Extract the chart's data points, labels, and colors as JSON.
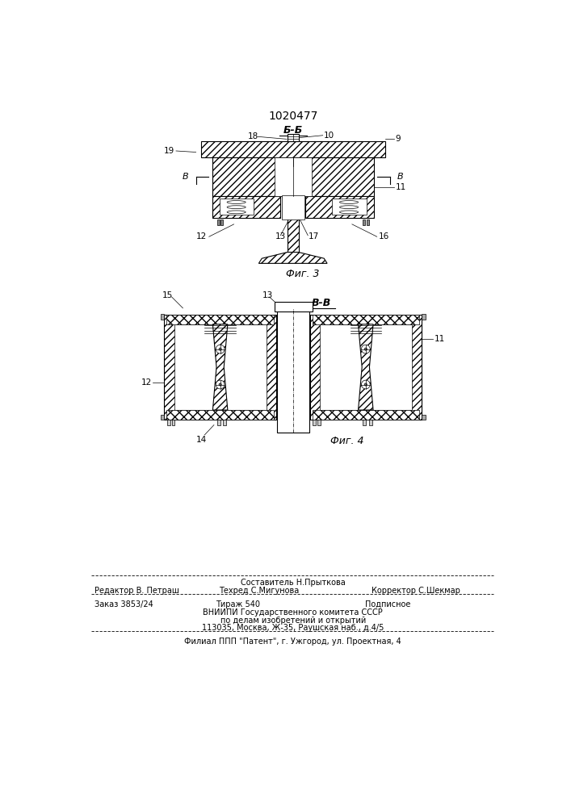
{
  "patent_number": "1020477",
  "fig3_label": "Б-Б",
  "fig4_label": "В-В",
  "fig3_caption": "Фиг. 3",
  "fig4_caption": "Фиг. 4",
  "footer_line1": "Составитель Н.Прыткова",
  "footer_line2_left": "Редактор В. Петраш",
  "footer_line2_mid": "Техред С.Мигунова",
  "footer_line2_right": "Корректор С.Шекмар",
  "footer_line3_col1": "Заказ 3853/24",
  "footer_line3_col2": "Тираж 540",
  "footer_line3_col3": "Подписное",
  "footer_line4": "ВНИИПИ Государственного комитета СССР",
  "footer_line5": "по делам изобретений и открытий",
  "footer_line6": "113035, Москва, Ж-35, Раушская наб., д.4/5",
  "footer_line7": "Филиал ППП \"Патент\", г. Ужгород, ул. Проектная, 4",
  "bg_color": "#ffffff",
  "line_color": "#000000"
}
